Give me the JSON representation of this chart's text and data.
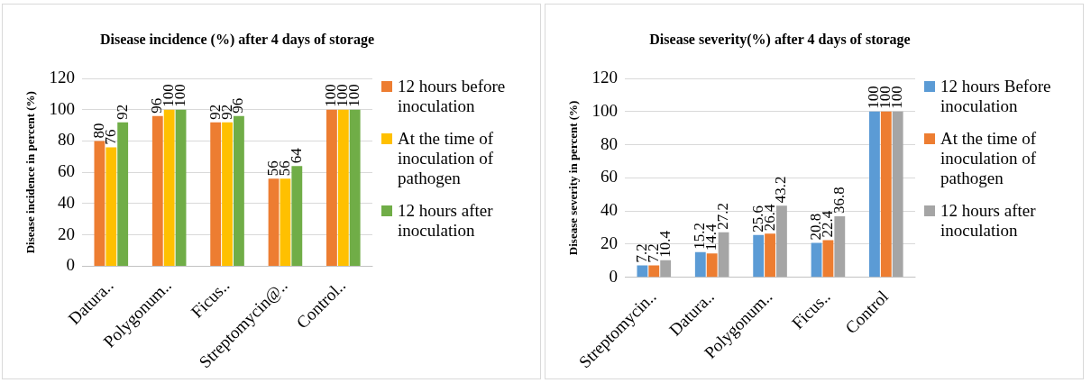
{
  "chart_data": [
    {
      "type": "bar",
      "title": "Disease incidence (%)  after 4 days of storage",
      "ylabel": "Disease incidence in percent (%)",
      "categories": [
        "Datura..",
        "Polygonum..",
        "Ficus..",
        "Streptomycin@..",
        "Control.."
      ],
      "series": [
        {
          "name": "12 hours before inoculation",
          "color": "#ed7d31",
          "values": [
            80,
            96,
            92,
            56,
            100
          ]
        },
        {
          "name": "At the time of inoculation of pathogen",
          "color": "#ffc000",
          "values": [
            76,
            100,
            92,
            56,
            100
          ]
        },
        {
          "name": "12 hours after inoculation",
          "color": "#70ad47",
          "values": [
            92,
            100,
            96,
            64,
            100
          ]
        }
      ],
      "ylim": [
        0,
        120
      ],
      "yticks": [
        0,
        20,
        40,
        60,
        80,
        100,
        120
      ],
      "grid": "y",
      "legend": "right",
      "data_labels": true
    },
    {
      "type": "bar",
      "title": "Disease severity(%) after 4 days of storage",
      "ylabel": "Disease severity in percent (%)",
      "categories": [
        "Streptomycin..",
        "Datura..",
        "Polygonum..",
        "Ficus..",
        "Control"
      ],
      "series": [
        {
          "name": "12 hours Before inoculation",
          "color": "#5b9bd5",
          "values": [
            7.2,
            15.2,
            25.6,
            20.8,
            100
          ]
        },
        {
          "name": "At the time of inoculation of pathogen",
          "color": "#ed7d31",
          "values": [
            7.2,
            14.4,
            26.4,
            22.4,
            100
          ]
        },
        {
          "name": "12 hours after inoculation",
          "color": "#a5a5a5",
          "values": [
            10.4,
            27.2,
            43.2,
            36.8,
            100
          ]
        }
      ],
      "ylim": [
        0,
        120
      ],
      "yticks": [
        0,
        20,
        40,
        60,
        80,
        100,
        120
      ],
      "grid": "y",
      "legend": "right",
      "data_labels": true
    }
  ]
}
